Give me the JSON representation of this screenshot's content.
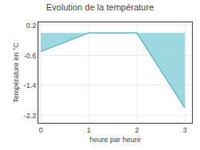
{
  "chart_data": {
    "type": "area",
    "title": "Evolution de la température",
    "xlabel": "heure par heure",
    "ylabel": "Température en °C",
    "x": [
      0,
      1,
      2,
      3
    ],
    "values": [
      -0.5,
      0.0,
      0.0,
      -2.0
    ],
    "color": "#5bbccc",
    "xlim": [
      -0.05,
      3.15
    ],
    "xticks": [
      0,
      1,
      2,
      3
    ],
    "ylim": [
      -2.4,
      0.28
    ],
    "yticks": [
      0.2,
      -0.6,
      -1.4,
      -2.2
    ],
    "grid": true
  }
}
